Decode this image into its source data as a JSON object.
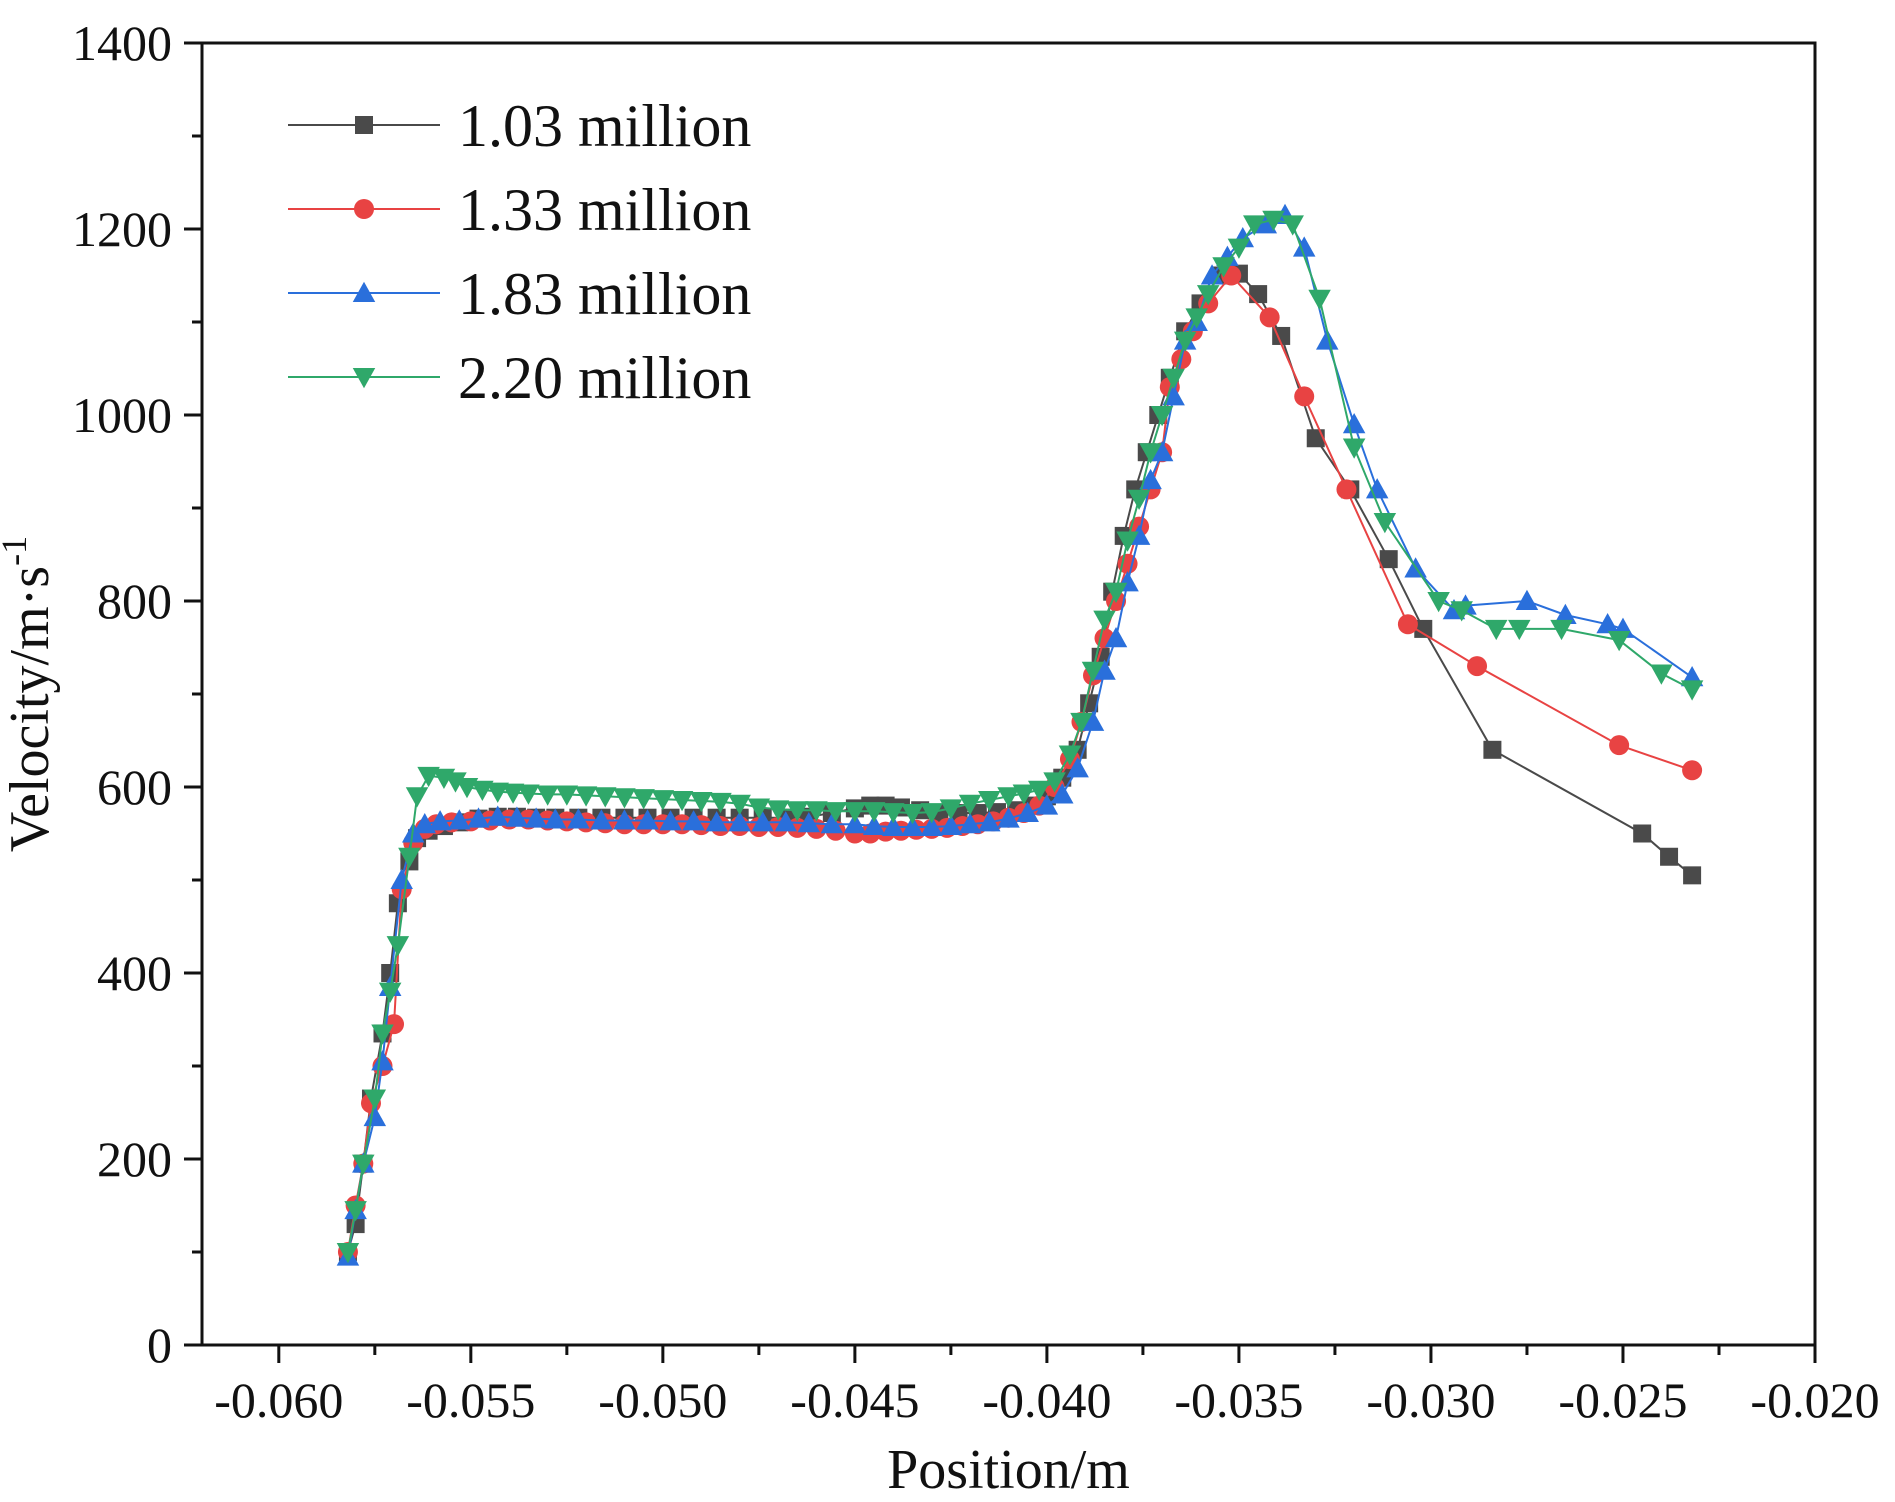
{
  "chart_data": {
    "type": "line",
    "title": "",
    "xlabel": "Position/m",
    "ylabel_main": "Velocity/m·s",
    "ylabel_sup": "-1",
    "xlim": [
      -0.062,
      -0.02
    ],
    "ylim": [
      0,
      1400
    ],
    "x_ticks": [
      -0.06,
      -0.055,
      -0.05,
      -0.045,
      -0.04,
      -0.035,
      -0.03,
      -0.025,
      -0.02
    ],
    "x_tick_labels": [
      "-0.060",
      "-0.055",
      "-0.050",
      "-0.045",
      "-0.040",
      "-0.035",
      "-0.030",
      "-0.025",
      "-0.020"
    ],
    "y_ticks": [
      0,
      200,
      400,
      600,
      800,
      1000,
      1200,
      1400
    ],
    "y_tick_labels": [
      "0",
      "200",
      "400",
      "600",
      "800",
      "1000",
      "1200",
      "1400"
    ],
    "grid": false,
    "legend_position": "top-left",
    "series": [
      {
        "name": "1.03 million",
        "color": "#4a4a4a",
        "marker": "square",
        "x": [
          -0.0582,
          -0.058,
          -0.0578,
          -0.0576,
          -0.0573,
          -0.0571,
          -0.0569,
          -0.0566,
          -0.0564,
          -0.0561,
          -0.0557,
          -0.0553,
          -0.0548,
          -0.0543,
          -0.0538,
          -0.0533,
          -0.0528,
          -0.0522,
          -0.0516,
          -0.051,
          -0.0504,
          -0.0498,
          -0.0492,
          -0.0486,
          -0.048,
          -0.0474,
          -0.0468,
          -0.0462,
          -0.0456,
          -0.045,
          -0.0446,
          -0.0442,
          -0.0438,
          -0.0433,
          -0.0428,
          -0.0423,
          -0.0418,
          -0.0413,
          -0.0408,
          -0.0404,
          -0.04,
          -0.0396,
          -0.0392,
          -0.0389,
          -0.0386,
          -0.0383,
          -0.038,
          -0.0377,
          -0.0374,
          -0.0371,
          -0.0368,
          -0.0364,
          -0.036,
          -0.0355,
          -0.035,
          -0.0345,
          -0.0339,
          -0.033,
          -0.0321,
          -0.0311,
          -0.0302,
          -0.0284,
          -0.0245,
          -0.0238,
          -0.0232
        ],
        "y": [
          100,
          130,
          195,
          265,
          335,
          400,
          475,
          520,
          545,
          553,
          558,
          562,
          566,
          568,
          568,
          567,
          567,
          567,
          567,
          567,
          567,
          567,
          567,
          567,
          567,
          567,
          567,
          568,
          572,
          577,
          580,
          580,
          578,
          575,
          572,
          572,
          572,
          573,
          575,
          580,
          590,
          610,
          640,
          690,
          740,
          810,
          870,
          920,
          960,
          1000,
          1040,
          1090,
          1120,
          1150,
          1152,
          1130,
          1085,
          975,
          920,
          845,
          770,
          640,
          550,
          525,
          505
        ]
      },
      {
        "name": "1.33 million",
        "color": "#e84343",
        "marker": "circle",
        "x": [
          -0.0582,
          -0.058,
          -0.0578,
          -0.0576,
          -0.0573,
          -0.057,
          -0.0568,
          -0.0565,
          -0.0562,
          -0.0559,
          -0.0555,
          -0.055,
          -0.0545,
          -0.054,
          -0.0535,
          -0.053,
          -0.0525,
          -0.052,
          -0.0515,
          -0.051,
          -0.0505,
          -0.05,
          -0.0495,
          -0.049,
          -0.0485,
          -0.048,
          -0.0475,
          -0.047,
          -0.0465,
          -0.046,
          -0.0455,
          -0.045,
          -0.0446,
          -0.0442,
          -0.0438,
          -0.0434,
          -0.043,
          -0.0426,
          -0.0422,
          -0.0418,
          -0.0414,
          -0.041,
          -0.0406,
          -0.0402,
          -0.0398,
          -0.0394,
          -0.0391,
          -0.0388,
          -0.0385,
          -0.0382,
          -0.0379,
          -0.0376,
          -0.0373,
          -0.037,
          -0.0368,
          -0.0365,
          -0.0362,
          -0.0358,
          -0.0352,
          -0.0342,
          -0.0333,
          -0.0322,
          -0.0306,
          -0.0288,
          -0.0251,
          -0.0232
        ],
        "y": [
          100,
          150,
          195,
          260,
          300,
          345,
          490,
          540,
          555,
          560,
          562,
          563,
          564,
          565,
          565,
          564,
          563,
          562,
          561,
          560,
          560,
          560,
          560,
          559,
          558,
          558,
          557,
          557,
          556,
          555,
          553,
          550,
          550,
          552,
          553,
          554,
          555,
          556,
          558,
          560,
          563,
          567,
          572,
          580,
          600,
          630,
          670,
          720,
          760,
          800,
          840,
          880,
          920,
          960,
          1030,
          1060,
          1090,
          1120,
          1150,
          1105,
          1020,
          920,
          775,
          730,
          645,
          618
        ]
      },
      {
        "name": "1.83 million",
        "color": "#2a6fdb",
        "marker": "triangle-up",
        "x": [
          -0.0582,
          -0.058,
          -0.0578,
          -0.0575,
          -0.0573,
          -0.0571,
          -0.0568,
          -0.0565,
          -0.0562,
          -0.0558,
          -0.0553,
          -0.0548,
          -0.0543,
          -0.0538,
          -0.0533,
          -0.0528,
          -0.0522,
          -0.0516,
          -0.051,
          -0.0504,
          -0.0498,
          -0.0492,
          -0.0486,
          -0.048,
          -0.0474,
          -0.0468,
          -0.0462,
          -0.0456,
          -0.045,
          -0.0445,
          -0.044,
          -0.0435,
          -0.043,
          -0.0425,
          -0.042,
          -0.0415,
          -0.041,
          -0.0405,
          -0.04,
          -0.0396,
          -0.0392,
          -0.0388,
          -0.0385,
          -0.0382,
          -0.0379,
          -0.0376,
          -0.0373,
          -0.037,
          -0.0367,
          -0.0364,
          -0.0361,
          -0.0357,
          -0.0353,
          -0.0349,
          -0.0343,
          -0.0338,
          -0.0333,
          -0.0327,
          -0.032,
          -0.0314,
          -0.0304,
          -0.0294,
          -0.0291,
          -0.0275,
          -0.0265,
          -0.0254,
          -0.025,
          -0.0232
        ],
        "y": [
          95,
          145,
          195,
          245,
          305,
          385,
          500,
          550,
          560,
          563,
          564,
          566,
          568,
          567,
          566,
          565,
          565,
          564,
          564,
          564,
          563,
          563,
          562,
          562,
          562,
          562,
          561,
          560,
          560,
          558,
          557,
          557,
          557,
          558,
          560,
          562,
          566,
          572,
          580,
          592,
          620,
          670,
          725,
          760,
          820,
          870,
          930,
          960,
          1020,
          1080,
          1100,
          1150,
          1170,
          1190,
          1205,
          1215,
          1180,
          1080,
          990,
          920,
          835,
          790,
          795,
          800,
          785,
          775,
          770,
          718
        ]
      },
      {
        "name": "2.20 million",
        "color": "#2fa86a",
        "marker": "triangle-down",
        "x": [
          -0.0582,
          -0.058,
          -0.0578,
          -0.0575,
          -0.0573,
          -0.0571,
          -0.0569,
          -0.0566,
          -0.0564,
          -0.0561,
          -0.0557,
          -0.0554,
          -0.0551,
          -0.0547,
          -0.0543,
          -0.0539,
          -0.0535,
          -0.053,
          -0.0525,
          -0.052,
          -0.0515,
          -0.051,
          -0.0505,
          -0.05,
          -0.0495,
          -0.049,
          -0.0485,
          -0.048,
          -0.0475,
          -0.047,
          -0.0465,
          -0.046,
          -0.0455,
          -0.045,
          -0.0445,
          -0.044,
          -0.0435,
          -0.043,
          -0.0425,
          -0.042,
          -0.0415,
          -0.041,
          -0.0406,
          -0.0402,
          -0.0398,
          -0.0394,
          -0.0391,
          -0.0388,
          -0.0385,
          -0.0382,
          -0.0379,
          -0.0376,
          -0.0373,
          -0.037,
          -0.0367,
          -0.0364,
          -0.0361,
          -0.0358,
          -0.0354,
          -0.035,
          -0.0346,
          -0.0341,
          -0.0336,
          -0.0329,
          -0.032,
          -0.0312,
          -0.0298,
          -0.0292,
          -0.0283,
          -0.0277,
          -0.0266,
          -0.0251,
          -0.024,
          -0.0232
        ],
        "y": [
          100,
          145,
          195,
          265,
          335,
          380,
          430,
          525,
          590,
          612,
          610,
          606,
          600,
          597,
          595,
          594,
          593,
          592,
          592,
          591,
          590,
          589,
          588,
          587,
          586,
          585,
          584,
          582,
          578,
          576,
          575,
          575,
          574,
          574,
          574,
          573,
          572,
          573,
          577,
          582,
          586,
          590,
          593,
          597,
          606,
          635,
          670,
          725,
          780,
          810,
          865,
          910,
          960,
          1000,
          1040,
          1080,
          1105,
          1130,
          1160,
          1180,
          1205,
          1210,
          1205,
          1125,
          965,
          885,
          800,
          790,
          770,
          770,
          770,
          758,
          722,
          705
        ]
      }
    ]
  }
}
